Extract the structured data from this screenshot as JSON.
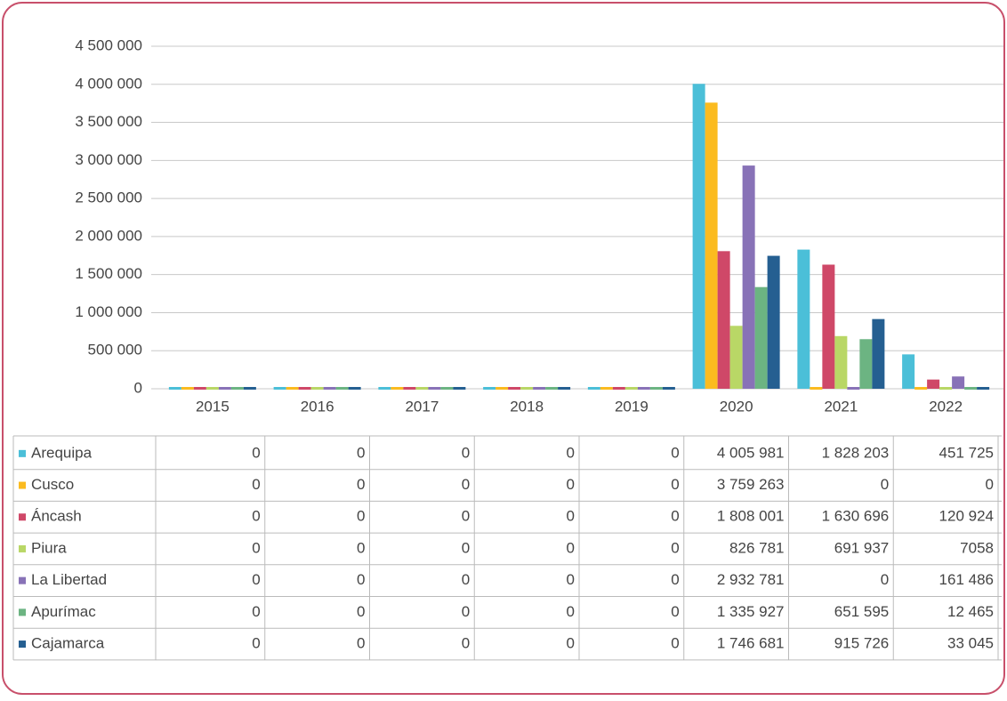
{
  "chart_data": {
    "type": "bar",
    "categories": [
      "2015",
      "2016",
      "2017",
      "2018",
      "2019",
      "2020",
      "2021",
      "2022"
    ],
    "series": [
      {
        "name": "Arequipa",
        "color": "#4bbfd8",
        "values": [
          0,
          0,
          0,
          0,
          0,
          4005981,
          1828203,
          451725
        ],
        "value_labels": [
          "0",
          "0",
          "0",
          "0",
          "0",
          "4 005 981",
          "1 828 203",
          "451 725"
        ]
      },
      {
        "name": "Cusco",
        "color": "#fbbb1f",
        "values": [
          0,
          0,
          0,
          0,
          0,
          3759263,
          0,
          0
        ],
        "value_labels": [
          "0",
          "0",
          "0",
          "0",
          "0",
          "3 759 263",
          "0",
          "0"
        ]
      },
      {
        "name": "Áncash",
        "color": "#cf4868",
        "values": [
          0,
          0,
          0,
          0,
          0,
          1808001,
          1630696,
          120924
        ],
        "value_labels": [
          "0",
          "0",
          "0",
          "0",
          "0",
          "1 808 001",
          "1 630 696",
          "120 924"
        ]
      },
      {
        "name": "Piura",
        "color": "#b9d766",
        "values": [
          0,
          0,
          0,
          0,
          0,
          826781,
          691937,
          7058
        ],
        "value_labels": [
          "0",
          "0",
          "0",
          "0",
          "0",
          "826 781",
          "691 937",
          "7058"
        ]
      },
      {
        "name": "La Libertad",
        "color": "#8872b7",
        "values": [
          0,
          0,
          0,
          0,
          0,
          2932781,
          0,
          161486
        ],
        "value_labels": [
          "0",
          "0",
          "0",
          "0",
          "0",
          "2 932 781",
          "0",
          "161 486"
        ]
      },
      {
        "name": "Apurímac",
        "color": "#6cb482",
        "values": [
          0,
          0,
          0,
          0,
          0,
          1335927,
          651595,
          12465
        ],
        "value_labels": [
          "0",
          "0",
          "0",
          "0",
          "0",
          "1 335 927",
          "651 595",
          "12 465"
        ]
      },
      {
        "name": "Cajamarca",
        "color": "#255f91",
        "values": [
          0,
          0,
          0,
          0,
          0,
          1746681,
          915726,
          33045
        ],
        "value_labels": [
          "0",
          "0",
          "0",
          "0",
          "0",
          "1 746 681",
          "915 726",
          "33 045"
        ]
      }
    ],
    "ylim": [
      0,
      4500000
    ],
    "yticks": [
      0,
      {
        "value": 500000,
        "label": "500 000"
      },
      {
        "value": 1000000,
        "label": "1 000 000"
      },
      {
        "value": 1500000,
        "label": "1 500 000"
      },
      {
        "value": 2000000,
        "label": "2 000 000"
      },
      {
        "value": 2500000,
        "label": "2 500 000"
      },
      {
        "value": 3000000,
        "label": "3 000 000"
      },
      {
        "value": 3500000,
        "label": "3 500 000"
      },
      {
        "value": 4000000,
        "label": "4 000 000"
      },
      {
        "value": 4500000,
        "label": "4 500 000"
      }
    ],
    "grid": true
  }
}
